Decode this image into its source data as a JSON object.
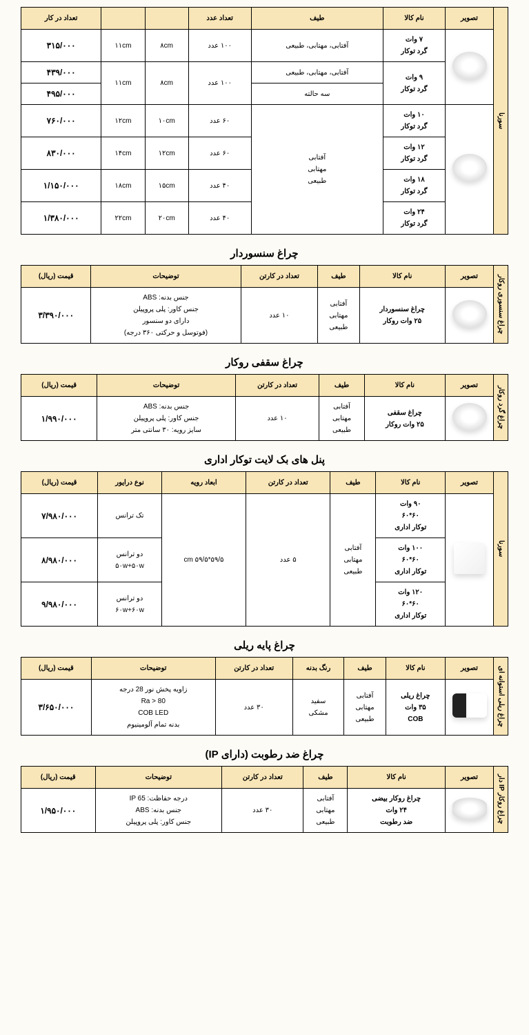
{
  "colors": {
    "header_bg": "#f9e6b8",
    "page_bg": "#fdfbf5",
    "border": "#000000"
  },
  "t1": {
    "headers": [
      "تصویر",
      "نام کالا",
      "طیف",
      "تعداد عدد",
      "",
      "",
      "تعداد در کار"
    ],
    "vlabel": "سورنا",
    "rows": [
      {
        "name": "۷ وات\nگرد توکار",
        "spec": "آفتابی، مهتابی، طبیعی",
        "qty": "۱۰۰ عدد",
        "d1": "۸cm",
        "d2": "۱۱cm",
        "price": "۳۱۵/۰۰۰"
      },
      {
        "name": "۹ وات\nگرد توکار",
        "spec": "آفتابی، مهتابی، طبیعی",
        "qty": "۱۰۰ عدد",
        "d1": "۸cm",
        "d2": "۱۱cm",
        "price": "۴۳۹/۰۰۰",
        "spec2": "سه حالته",
        "price2": "۴۹۵/۰۰۰"
      },
      {
        "name": "۱۰ وات\nگرد توکار",
        "spec": "آفتابی\nمهتابی\nطبیعی",
        "qty": "۶۰ عدد",
        "d1": "۱۰cm",
        "d2": "۱۲cm",
        "price": "۷۶۰/۰۰۰"
      },
      {
        "name": "۱۲ وات\nگرد توکار",
        "qty": "۶۰ عدد",
        "d1": "۱۲cm",
        "d2": "۱۴cm",
        "price": "۸۳۰/۰۰۰"
      },
      {
        "name": "۱۸ وات\nگرد توکار",
        "qty": "۴۰ عدد",
        "d1": "۱۵cm",
        "d2": "۱۸cm",
        "price": "۱/۱۵۰/۰۰۰"
      },
      {
        "name": "۲۴ وات\nگرد توکار",
        "qty": "۴۰ عدد",
        "d1": "۲۰cm",
        "d2": "۲۲cm",
        "price": "۱/۳۸۰/۰۰۰"
      }
    ]
  },
  "t2": {
    "title": "چراغ سنسوردار",
    "headers": [
      "تصویر",
      "نام کالا",
      "طیف",
      "تعداد در کارتن",
      "توضیحات",
      "قیمت (ریال)"
    ],
    "vlabel": "چراغ سنسوری روکار",
    "row": {
      "name": "چراغ سنسوردار\n۲۵ وات روکار",
      "spec": "آفتابی\nمهتابی\nطبیعی",
      "qty": "۱۰ عدد",
      "desc": "جنس بدنه: ABS\nجنس کاور: پلی پروپیلن\nدارای دو سنسور\n(فوتوسل و حرکتی ۳۶۰ درجه)",
      "price": "۳/۳۹۰/۰۰۰"
    }
  },
  "t3": {
    "title": "چراغ سقفی روکار",
    "headers": [
      "تصویر",
      "نام کالا",
      "طیف",
      "تعداد در کارتن",
      "توضیحات",
      "قیمت (ریال)"
    ],
    "vlabel": "چراغ گرد روکار",
    "row": {
      "name": "چراغ سقفی\n۲۵ وات روکار",
      "spec": "آفتابی\nمهتابی\nطبیعی",
      "qty": "۱۰ عدد",
      "desc": "جنس بدنه: ABS\nجنس کاور: پلی پروپیلن\nسایز رویه: ۳۰ سانتی متر",
      "price": "۱/۹۹۰/۰۰۰"
    }
  },
  "t4": {
    "title": "پنل های بک لایت توکار اداری",
    "headers": [
      "تصویر",
      "نام کالا",
      "طیف",
      "تعداد در کارتن",
      "ابعاد رویه",
      "نوع درایور",
      "قیمت (ریال)"
    ],
    "vlabel": "سورنا",
    "shared": {
      "spec": "آفتابی\nمهتابی\nطبیعی",
      "qty": "۵ عدد",
      "dim": "۵۹/۵*۵۹/۵ cm"
    },
    "rows": [
      {
        "name": "۹۰ وات\n۶۰*۶۰\nتوکار اداری",
        "driver": "تک ترانس",
        "price": "۷/۹۸۰/۰۰۰"
      },
      {
        "name": "۱۰۰ وات\n۶۰*۶۰\nتوکار اداری",
        "driver": "دو ترانس\n۵۰w+۵۰w",
        "price": "۸/۹۸۰/۰۰۰"
      },
      {
        "name": "۱۲۰ وات\n۶۰*۶۰\nتوکار اداری",
        "driver": "دو ترانس\n۶۰w+۶۰w",
        "price": "۹/۹۸۰/۰۰۰"
      }
    ]
  },
  "t5": {
    "title": "چراغ پایه ریلی",
    "headers": [
      "تصویر",
      "نام کالا",
      "طیف",
      "رنگ بدنه",
      "تعداد در کارتن",
      "توضیحات",
      "قیمت (ریال)"
    ],
    "vlabel": "چراغ ریلی استوانه ای",
    "row": {
      "name": "چراغ ریلی\n۳۵ وات\nCOB",
      "spec": "آفتابی\nمهتابی\nطبیعی",
      "color": "سفید\nمشکی",
      "qty": "۳۰ عدد",
      "desc": "زاویه پخش نور 28 درجه\n80 < Ra\nCOB LED\nبدنه تمام آلومینیوم",
      "price": "۳/۶۵۰/۰۰۰"
    }
  },
  "t6": {
    "title": "چراغ ضد رطوبت (دارای IP)",
    "headers": [
      "تصویر",
      "نام کالا",
      "طیف",
      "تعداد در کارتن",
      "توضیحات",
      "قیمت (ریال)"
    ],
    "vlabel": "چراغ روکار IP دار",
    "row": {
      "name": "چراغ روکار بیضی\n۲۴ وات\nضد رطوبت",
      "spec": "آفتابی\nمهتابی\nطبیعی",
      "qty": "۳۰ عدد",
      "desc": "درجه حفاظت: IP 65\nجنس بدنه: ABS\nجنس کاور: پلی پروپیلن",
      "price": "۱/۹۵۰/۰۰۰"
    }
  }
}
